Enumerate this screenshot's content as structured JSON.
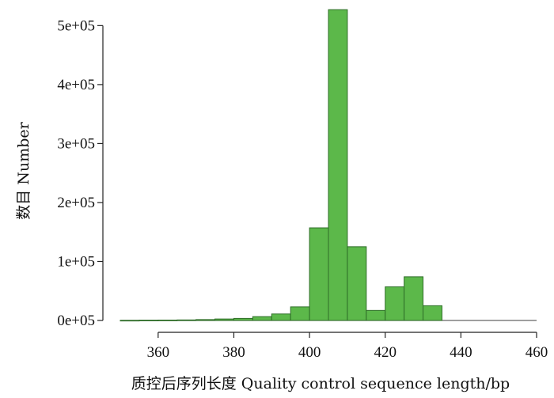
{
  "chart_data": {
    "type": "bar",
    "subtype": "histogram",
    "xlabel": "质控后序列长度 Quality control sequence length/bp",
    "ylabel": "数目 Number",
    "xlim": [
      350,
      460
    ],
    "ylim": [
      0,
      530000
    ],
    "x_ticks": [
      "360",
      "380",
      "400",
      "420",
      "440",
      "460"
    ],
    "y_ticks": [
      "0e+05",
      "1e+05",
      "2e+05",
      "3e+05",
      "4e+05",
      "5e+05"
    ],
    "bin_width": 5,
    "bins": [
      {
        "x0": 350,
        "x1": 355,
        "value": 200
      },
      {
        "x0": 355,
        "x1": 360,
        "value": 400
      },
      {
        "x0": 360,
        "x1": 365,
        "value": 600
      },
      {
        "x0": 365,
        "x1": 370,
        "value": 900
      },
      {
        "x0": 370,
        "x1": 375,
        "value": 1500
      },
      {
        "x0": 375,
        "x1": 380,
        "value": 2500
      },
      {
        "x0": 380,
        "x1": 385,
        "value": 3500
      },
      {
        "x0": 385,
        "x1": 390,
        "value": 6500
      },
      {
        "x0": 390,
        "x1": 395,
        "value": 11000
      },
      {
        "x0": 395,
        "x1": 400,
        "value": 23000
      },
      {
        "x0": 400,
        "x1": 405,
        "value": 157000
      },
      {
        "x0": 405,
        "x1": 410,
        "value": 527000
      },
      {
        "x0": 410,
        "x1": 415,
        "value": 125000
      },
      {
        "x0": 415,
        "x1": 420,
        "value": 17000
      },
      {
        "x0": 420,
        "x1": 425,
        "value": 57000
      },
      {
        "x0": 425,
        "x1": 430,
        "value": 74000
      },
      {
        "x0": 430,
        "x1": 435,
        "value": 25000
      }
    ],
    "bar_color": "#5cb84a",
    "bar_edge_color": "#2f6e28",
    "grid": false
  }
}
